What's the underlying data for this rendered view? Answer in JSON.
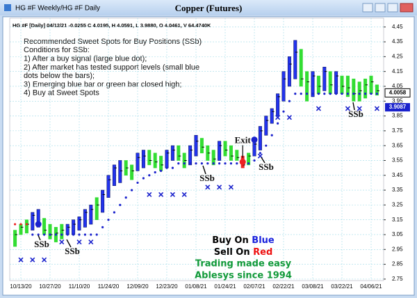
{
  "window_title": "HG #F Weekly/HG #F Daily",
  "chart_data": {
    "type": "ohlc",
    "title": "Copper (Futures)",
    "info_line": "HG #F [Daily] 04/12/21 -0.0255 C 4.0195, H 4.0591, L 3.9880, O 4.0461, V 64.4740K",
    "annotation_lines": [
      "Recommended Sweet Spots for Buy Positions (SSb)",
      "Conditions for SSb:",
      "1) After a buy signal (large blue dot);",
      "2) After market has tested support levels (small blue",
      "dots below the bars);",
      "3) Emerging blue bar or green bar closed high;",
      "4) Buy at Sweet Spots"
    ],
    "categories": [
      null,
      "10/13/20",
      null,
      null,
      null,
      null,
      "10/27/20",
      null,
      null,
      null,
      null,
      "11/10/20",
      null,
      null,
      null,
      null,
      "11/24/20",
      null,
      null,
      null,
      null,
      "12/09/20",
      null,
      null,
      null,
      null,
      "12/23/20",
      null,
      null,
      null,
      null,
      "01/08/21",
      null,
      null,
      null,
      null,
      "01/24/21",
      null,
      null,
      null,
      null,
      "02/07/21",
      null,
      null,
      null,
      null,
      "02/22/21",
      null,
      null,
      null,
      null,
      "03/08/21",
      null,
      null,
      null,
      null,
      "03/22/21",
      null,
      null,
      null,
      null,
      "04/06/21",
      null
    ],
    "high": [
      3.08,
      3.12,
      3.15,
      3.2,
      3.22,
      3.16,
      3.12,
      3.1,
      3.12,
      3.12,
      3.15,
      3.17,
      3.22,
      3.25,
      3.3,
      3.35,
      3.45,
      3.52,
      3.55,
      3.55,
      3.52,
      3.6,
      3.62,
      3.62,
      3.6,
      3.58,
      3.62,
      3.65,
      3.65,
      3.6,
      3.65,
      3.72,
      3.7,
      3.65,
      3.62,
      3.68,
      3.68,
      3.65,
      3.62,
      3.58,
      3.6,
      3.68,
      3.78,
      3.85,
      3.9,
      4.0,
      4.15,
      4.25,
      4.36,
      4.3,
      4.15,
      4.15,
      4.12,
      4.18,
      4.15,
      4.15,
      4.12,
      4.12,
      4.1,
      4.08,
      4.1,
      4.12,
      4.06
    ],
    "low": [
      2.97,
      3.05,
      3.06,
      3.08,
      3.1,
      3.05,
      3.02,
      3.0,
      3.02,
      3.05,
      3.05,
      3.08,
      3.1,
      3.12,
      3.15,
      3.2,
      3.3,
      3.38,
      3.4,
      3.45,
      3.42,
      3.48,
      3.5,
      3.52,
      3.5,
      3.48,
      3.5,
      3.55,
      3.55,
      3.5,
      3.52,
      3.58,
      3.6,
      3.55,
      3.52,
      3.55,
      3.58,
      3.55,
      3.55,
      3.5,
      3.52,
      3.58,
      3.62,
      3.72,
      3.8,
      3.85,
      3.95,
      4.05,
      4.1,
      4.05,
      3.95,
      3.98,
      4.0,
      4.02,
      4.0,
      4.0,
      4.0,
      3.98,
      3.95,
      3.95,
      3.97,
      4.0,
      3.99
    ],
    "close": [
      3.05,
      3.1,
      3.12,
      3.18,
      3.12,
      3.08,
      3.05,
      3.06,
      3.08,
      3.1,
      3.12,
      3.15,
      3.2,
      3.22,
      3.25,
      3.32,
      3.42,
      3.5,
      3.48,
      3.5,
      3.48,
      3.57,
      3.58,
      3.55,
      3.54,
      3.52,
      3.6,
      3.62,
      3.58,
      3.55,
      3.62,
      3.68,
      3.64,
      3.6,
      3.56,
      3.65,
      3.62,
      3.58,
      3.57,
      3.52,
      3.58,
      3.66,
      3.75,
      3.82,
      3.88,
      3.98,
      4.1,
      4.2,
      4.28,
      4.1,
      4.08,
      4.12,
      4.05,
      4.15,
      4.06,
      4.12,
      4.05,
      4.04,
      4.0,
      4.02,
      4.06,
      4.08,
      4.02
    ],
    "bar_colors": [
      "#33dd33",
      "#33dd33",
      "#33dd33",
      "#2233ee",
      "#2233ee",
      "#33dd33",
      "#33dd33",
      "#33dd33",
      "#33dd33",
      "#2233ee",
      "#2233ee",
      "#2233ee",
      "#2233ee",
      "#2233ee",
      "#33dd33",
      "#2233ee",
      "#2233ee",
      "#2233ee",
      "#2233ee",
      "#33dd33",
      "#33dd33",
      "#2233ee",
      "#2233ee",
      "#33dd33",
      "#33dd33",
      "#33dd33",
      "#2233ee",
      "#2233ee",
      "#33dd33",
      "#33dd33",
      "#2233ee",
      "#2233ee",
      "#33dd33",
      "#33dd33",
      "#33dd33",
      "#2233ee",
      "#33dd33",
      "#33dd33",
      "#33dd33",
      "#ee2222",
      "#33dd33",
      "#2233ee",
      "#2233ee",
      "#2233ee",
      "#2233ee",
      "#2233ee",
      "#2233ee",
      "#2233ee",
      "#2233ee",
      "#33dd33",
      "#33dd33",
      "#2233ee",
      "#33dd33",
      "#2233ee",
      "#33dd33",
      "#2233ee",
      "#33dd33",
      "#33dd33",
      "#33dd33",
      "#33dd33",
      "#33dd33",
      "#33dd33",
      "#33dd33"
    ],
    "series": [
      {
        "color": "#ee2222",
        "values": [
          3.12,
          3.12,
          3.12,
          null,
          null,
          null,
          null,
          null,
          null,
          null,
          null,
          null,
          null,
          null,
          null,
          null,
          null,
          null,
          null,
          null,
          null,
          null,
          null,
          null,
          null,
          null,
          null,
          null,
          null,
          null,
          null,
          null,
          null,
          null,
          null,
          null,
          null,
          null,
          null,
          null,
          null,
          null,
          null,
          null,
          null,
          null,
          null,
          null,
          null,
          null,
          null,
          null,
          null,
          null,
          null,
          null,
          null,
          null,
          null,
          null,
          null,
          null,
          null
        ]
      },
      {
        "color": "#1a22cc",
        "values": [
          null,
          null,
          null,
          3.05,
          3.05,
          3.05,
          3.05,
          3.05,
          3.05,
          3.05,
          3.05,
          3.05,
          3.05,
          3.05,
          3.05,
          3.1,
          3.15,
          3.2,
          3.25,
          3.3,
          3.35,
          3.4,
          3.43,
          3.45,
          3.47,
          3.48,
          3.5,
          3.5,
          3.53,
          3.53,
          3.53,
          3.53,
          3.53,
          3.53,
          3.53,
          3.53,
          3.53,
          3.53,
          3.53,
          3.53,
          3.53,
          3.55,
          3.6,
          3.65,
          3.72,
          3.8,
          3.88,
          3.95,
          4.0,
          4.0,
          4.0,
          4.0,
          4.0,
          4.0,
          4.0,
          4.0,
          4.0,
          4.0,
          4.0,
          4.0,
          4.0,
          4.0,
          4.0
        ]
      }
    ],
    "x_markers": {
      "color": "#1a22cc",
      "bars": [
        1,
        3,
        5,
        8,
        11,
        13,
        23,
        25,
        27,
        29,
        33,
        35,
        37,
        42,
        45,
        47,
        52,
        57,
        59,
        62
      ],
      "values": [
        2.88,
        2.88,
        2.88,
        3.0,
        3.0,
        3.0,
        3.32,
        3.32,
        3.32,
        3.32,
        3.37,
        3.37,
        3.37,
        3.58,
        3.84,
        3.84,
        3.9,
        3.9,
        3.9,
        3.9
      ]
    },
    "buy_signals": {
      "color": "#1a22cc",
      "bars": [
        4,
        41
      ],
      "values": [
        3.12,
        3.69
      ]
    },
    "exit_signal": {
      "color": "#ee2222",
      "bar": 39,
      "value": 3.54,
      "label": "Exit"
    },
    "ssb_labels": [
      "SSb",
      "SSb",
      "SSb",
      "SSb",
      "SSb"
    ],
    "last_price": 4.0058,
    "stop_price": 3.9087,
    "ylim": [
      2.74,
      4.51
    ],
    "yticks": [
      2.75,
      2.85,
      2.95,
      3.05,
      3.15,
      3.25,
      3.35,
      3.45,
      3.55,
      3.65,
      3.75,
      3.85,
      3.95,
      4.05,
      4.15,
      4.25,
      4.35,
      4.45
    ],
    "grid": true,
    "messages": {
      "buy_prefix": "Buy On",
      "buy_word": "Blue",
      "sell_prefix": "Sell On",
      "sell_word": "Red",
      "line3": "Trading made easy",
      "line4": "Ablesys since 1994"
    }
  }
}
